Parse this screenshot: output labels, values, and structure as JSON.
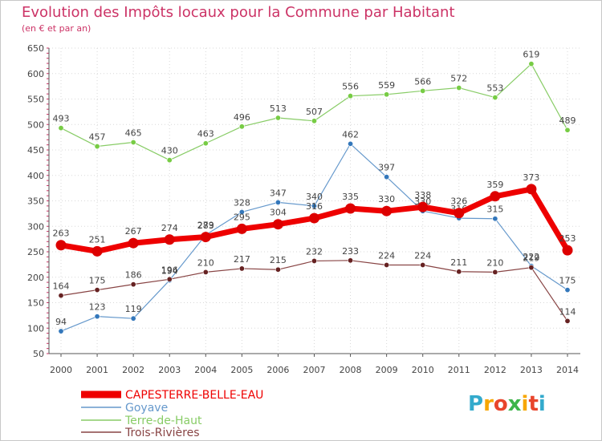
{
  "title": "Evolution des Impôts locaux pour la Commune par Habitant",
  "subtitle": "(en € et par an)",
  "logo": {
    "text": "Proxiti",
    "letter_colors": [
      "#33aacc",
      "#f7a600",
      "#e8452c",
      "#3db54a",
      "#f7a600",
      "#e8452c",
      "#33aacc"
    ]
  },
  "colors": {
    "title": "#cc3366",
    "grid": "#d8d8d8",
    "axis": "#555555"
  },
  "chart_data": {
    "type": "line",
    "title": "Evolution des Impôts locaux pour la Commune par Habitant",
    "subtitle": "(en € et par an)",
    "x": [
      "2000",
      "2001",
      "2002",
      "2003",
      "2004",
      "2005",
      "2006",
      "2007",
      "2008",
      "2009",
      "2010",
      "2011",
      "2012",
      "2013",
      "2014"
    ],
    "ylim": [
      50,
      650
    ],
    "yticks": [
      50,
      100,
      150,
      200,
      250,
      300,
      350,
      400,
      450,
      500,
      550,
      600,
      650
    ],
    "grid": true,
    "legend_position": "bottom-left",
    "series": [
      {
        "name": "CAPESTERRE-BELLE-EAU",
        "color": "#ee0000",
        "marker": "#dd0000",
        "bold": true,
        "values": [
          263,
          251,
          267,
          274,
          279,
          295,
          304,
          316,
          335,
          330,
          338,
          326,
          359,
          373,
          253
        ],
        "labels": [
          "263",
          "251",
          "267",
          "274",
          "279",
          "295",
          "304",
          "316",
          "335",
          "330",
          "338",
          "326",
          "359",
          "373",
          "253"
        ]
      },
      {
        "name": "Goyave",
        "color": "#6699cc",
        "marker": "#3377bb",
        "bold": false,
        "values": [
          94,
          123,
          119,
          194,
          283,
          328,
          347,
          340,
          462,
          397,
          330,
          316,
          315,
          222,
          175
        ],
        "labels": [
          "94",
          "123",
          "119",
          "194",
          "283",
          "328",
          "347",
          "340",
          "462",
          "397",
          "330",
          "316",
          "315",
          "222",
          "175"
        ]
      },
      {
        "name": "Terre-de-Haut",
        "color": "#88cc66",
        "marker": "#77cc44",
        "bold": false,
        "values": [
          493,
          457,
          465,
          430,
          463,
          496,
          513,
          507,
          556,
          559,
          566,
          572,
          553,
          619,
          489
        ],
        "labels": [
          "493",
          "457",
          "465",
          "430",
          "463",
          "496",
          "513",
          "507",
          "556",
          "559",
          "566",
          "572",
          "553",
          "619",
          "489"
        ]
      },
      {
        "name": "Trois-Rivières",
        "color": "#884444",
        "marker": "#662222",
        "bold": false,
        "values": [
          164,
          175,
          186,
          196,
          210,
          217,
          215,
          232,
          233,
          224,
          224,
          211,
          210,
          219,
          114
        ],
        "labels": [
          "164",
          "175",
          "186",
          "196",
          "210",
          "217",
          "215",
          "232",
          "233",
          "224",
          "224",
          "211",
          "210",
          "219",
          "114"
        ]
      }
    ]
  }
}
